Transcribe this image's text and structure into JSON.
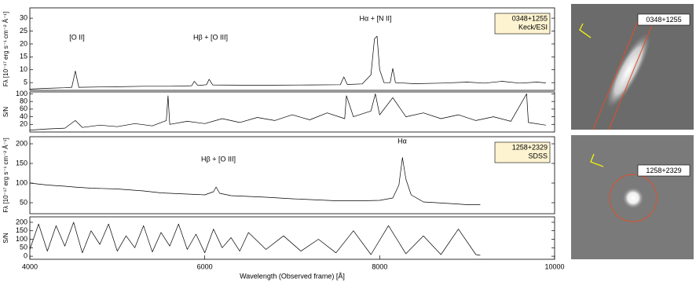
{
  "chart_data": [
    {
      "type": "line",
      "ylabel": "Fλ [10⁻¹⁷ erg s⁻¹ cm⁻² Å⁻¹]",
      "xlim": [
        4000,
        10000
      ],
      "ylim": [
        2,
        34
      ],
      "yticks": [
        5,
        10,
        15,
        20,
        25,
        30
      ],
      "annotations": [
        "[O II]",
        "Hβ + [O III]",
        "Hα + [N II]"
      ],
      "box": [
        "0348+1255",
        "Keck/ESI"
      ],
      "color": "#000000",
      "x": [
        4000,
        4200,
        4400,
        4480,
        4520,
        4560,
        4800,
        5000,
        5300,
        5600,
        5850,
        5880,
        5920,
        6020,
        6050,
        6090,
        6400,
        6800,
        7200,
        7550,
        7590,
        7630,
        7800,
        7900,
        7940,
        7970,
        8000,
        8050,
        8120,
        8150,
        8180,
        8400,
        8700,
        9000,
        9200,
        9400,
        9600,
        9800,
        9900
      ],
      "values": [
        2.5,
        2.8,
        3.0,
        3.2,
        9.5,
        3.2,
        3.3,
        3.4,
        3.6,
        3.6,
        3.8,
        5.5,
        3.9,
        4.2,
        6.3,
        4.1,
        4.0,
        4.0,
        4.1,
        4.2,
        7.2,
        4.3,
        4.5,
        8,
        22,
        23,
        10,
        5,
        5.0,
        10.5,
        5.0,
        4.6,
        4.8,
        5.2,
        4.8,
        5.5,
        4.8,
        5.2,
        4.9
      ]
    },
    {
      "type": "line",
      "ylabel": "S/N",
      "xlim": [
        4000,
        10000
      ],
      "ylim": [
        0,
        105
      ],
      "yticks": [
        20,
        40,
        60,
        80,
        100
      ],
      "color": "#000000",
      "x": [
        4000,
        4200,
        4400,
        4520,
        4600,
        4800,
        5000,
        5200,
        5400,
        5560,
        5580,
        5600,
        5800,
        6000,
        6200,
        6400,
        6600,
        6800,
        7000,
        7200,
        7400,
        7600,
        7620,
        7700,
        7900,
        7950,
        8000,
        8150,
        8300,
        8500,
        8700,
        8900,
        9100,
        9300,
        9500,
        9680,
        9700,
        9900
      ],
      "values": [
        5,
        8,
        10,
        30,
        12,
        18,
        14,
        22,
        16,
        30,
        95,
        20,
        28,
        22,
        35,
        25,
        38,
        30,
        45,
        32,
        50,
        35,
        95,
        40,
        55,
        100,
        45,
        90,
        40,
        50,
        35,
        45,
        30,
        40,
        28,
        100,
        25,
        18
      ]
    },
    {
      "type": "line",
      "ylabel": "Fλ [10⁻¹⁷ erg s⁻¹ cm⁻² Å⁻¹]",
      "xlim": [
        4000,
        10000
      ],
      "ylim": [
        22,
        218
      ],
      "yticks": [
        50,
        100,
        150,
        200
      ],
      "annotations": [
        "Hβ + [O III]",
        "Hα"
      ],
      "box": [
        "1258+2329",
        "SDSS"
      ],
      "color": "#000000",
      "x": [
        4000,
        4200,
        4400,
        4500,
        4700,
        5000,
        5300,
        5500,
        5800,
        6000,
        6100,
        6130,
        6170,
        6300,
        6500,
        6700,
        7000,
        7300,
        7500,
        7800,
        8000,
        8150,
        8220,
        8260,
        8300,
        8360,
        8500,
        8800,
        9000,
        9150
      ],
      "values": [
        100,
        95,
        92,
        90,
        87,
        85,
        80,
        75,
        72,
        70,
        78,
        90,
        74,
        68,
        66,
        64,
        60,
        57,
        55,
        55,
        56,
        62,
        95,
        165,
        110,
        70,
        52,
        48,
        45,
        45
      ]
    },
    {
      "type": "line",
      "ylabel": "S/N",
      "xlim": [
        4000,
        10000
      ],
      "ylim": [
        -18,
        232
      ],
      "yticks": [
        0,
        50,
        100,
        150,
        200
      ],
      "xticks": [
        4000,
        6000,
        8000,
        10000
      ],
      "xlabel": "Wavelength (Observed frame) [Å]",
      "color": "#000000",
      "x": [
        4000,
        4100,
        4200,
        4300,
        4400,
        4500,
        4600,
        4700,
        4800,
        4900,
        5000,
        5100,
        5200,
        5300,
        5400,
        5500,
        5600,
        5700,
        5800,
        5900,
        6000,
        6100,
        6200,
        6300,
        6400,
        6500,
        6700,
        6900,
        7100,
        7300,
        7500,
        7700,
        7900,
        8100,
        8300,
        8500,
        8700,
        8900,
        9100,
        9150
      ],
      "values": [
        40,
        190,
        30,
        180,
        60,
        200,
        20,
        150,
        70,
        190,
        30,
        120,
        50,
        180,
        25,
        140,
        60,
        190,
        40,
        130,
        20,
        160,
        50,
        110,
        30,
        140,
        40,
        120,
        30,
        100,
        20,
        150,
        10,
        180,
        15,
        120,
        10,
        160,
        10,
        5
      ]
    }
  ],
  "images": [
    {
      "label": "0348+1255"
    },
    {
      "label": "1258+2329"
    }
  ]
}
